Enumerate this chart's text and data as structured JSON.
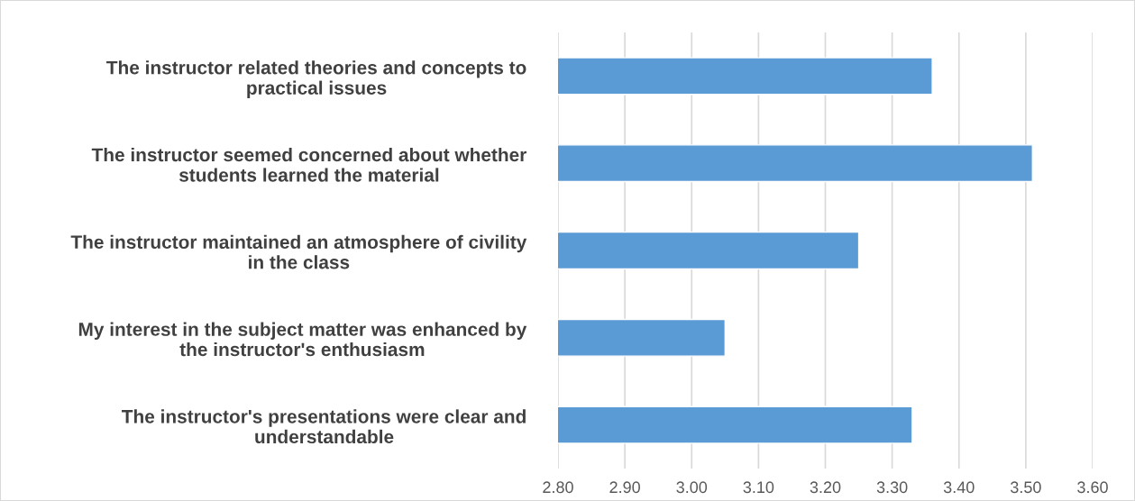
{
  "chart_data": {
    "type": "bar",
    "orientation": "horizontal",
    "categories": [
      "The instructor related theories and concepts to practical issues",
      "The instructor seemed concerned about whether students learned the material",
      "The instructor maintained an atmosphere of civility in the class",
      "My interest in the subject matter was enhanced by the instructor's enthusiasm",
      "The instructor's presentations were clear and understandable"
    ],
    "values": [
      3.36,
      3.51,
      3.25,
      3.05,
      3.33
    ],
    "color": "#5b9bd5",
    "xlim": [
      2.8,
      3.6
    ],
    "xticks": [
      {
        "value": 2.8,
        "label": "2.80"
      },
      {
        "value": 2.9,
        "label": "2.90"
      },
      {
        "value": 3.0,
        "label": "3.00"
      },
      {
        "value": 3.1,
        "label": "3.10"
      },
      {
        "value": 3.2,
        "label": "3.20"
      },
      {
        "value": 3.3,
        "label": "3.30"
      },
      {
        "value": 3.4,
        "label": "3.40"
      },
      {
        "value": 3.5,
        "label": "3.50"
      },
      {
        "value": 3.6,
        "label": "3.60"
      }
    ],
    "grid": "x"
  }
}
